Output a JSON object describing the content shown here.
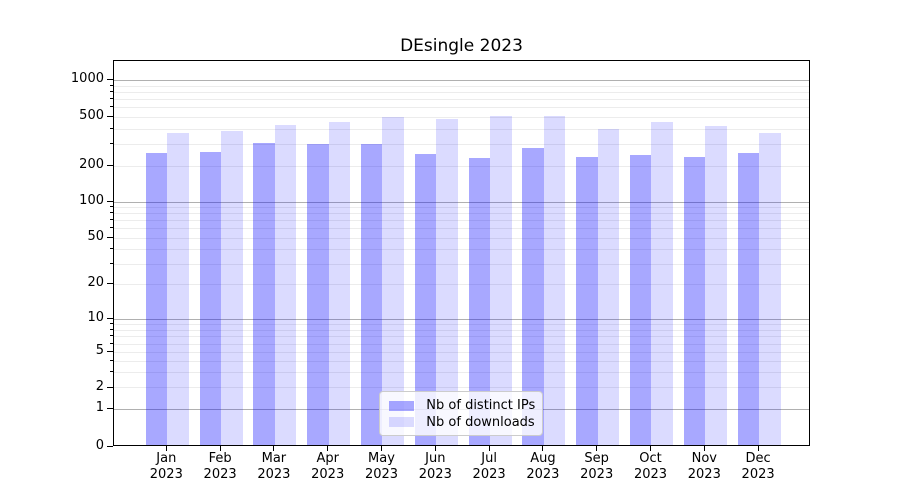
{
  "title": "DEsingle 2023",
  "colors": {
    "bar_base": "#0000ff",
    "distinct_ips_rendered": "#a8a8ff",
    "downloads_rendered": "#dcdcff",
    "major_gridline": "#b0b0b0",
    "minor_gridline": "#ececec",
    "axis_line": "#000000",
    "legend_border": "#cccccc"
  },
  "chart_data": {
    "type": "bar",
    "title": "DEsingle 2023",
    "categories": [
      "Jan 2023",
      "Feb 2023",
      "Mar 2023",
      "Apr 2023",
      "May 2023",
      "Jun 2023",
      "Jul 2023",
      "Aug 2023",
      "Sep 2023",
      "Oct 2023",
      "Nov 2023",
      "Dec 2023"
    ],
    "series": [
      {
        "name": "Nb of distinct IPs",
        "color": "#0000ff",
        "alpha": 0.34,
        "values": [
          256,
          261,
          306,
          300,
          303,
          249,
          231,
          280,
          237,
          244,
          237,
          256
        ]
      },
      {
        "name": "Nb of downloads",
        "color": "#0000ff",
        "alpha": 0.14,
        "values": [
          371,
          387,
          433,
          458,
          497,
          484,
          512,
          507,
          397,
          458,
          423,
          373
        ]
      }
    ],
    "yscale": "asinh-log (linear below 1, log above)",
    "yticks": [
      0,
      1,
      2,
      5,
      10,
      20,
      50,
      100,
      200,
      500,
      1000
    ],
    "ylim": [
      0,
      1200
    ],
    "grid": {
      "major": "solid lines at 1, 10, 100, 1000",
      "minor": "faint lines at 2-9 of each decade"
    },
    "legend_position": "lower center"
  }
}
